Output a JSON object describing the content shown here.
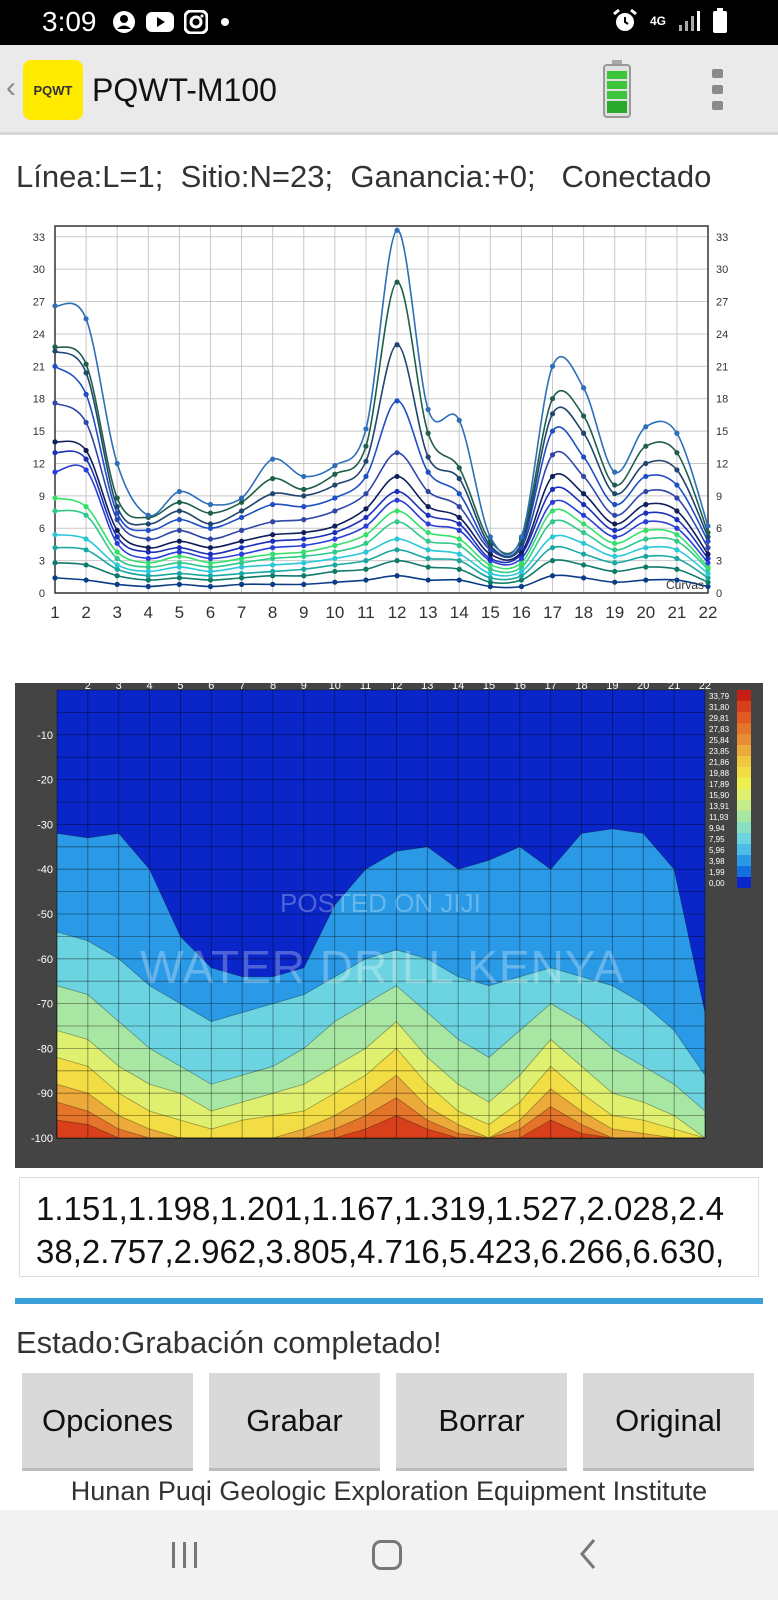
{
  "status_bar": {
    "time": "3:09",
    "left_icons": [
      "account-circle-icon",
      "youtube-icon",
      "instagram-icon",
      "dot-icon"
    ],
    "right_icons": [
      "alarm-icon",
      "signal-icon",
      "battery-icon"
    ],
    "network": "4G"
  },
  "app_bar": {
    "logo_text": "PQWT",
    "title": "PQWT-M100"
  },
  "info_line": "Línea:L=1;  Sitio:N=23;  Ganancia:+0;   Conectado",
  "chart_data": [
    {
      "type": "line",
      "title": "",
      "xlabel": "",
      "ylabel": "",
      "x": [
        1,
        2,
        3,
        4,
        5,
        6,
        7,
        8,
        9,
        10,
        11,
        12,
        13,
        14,
        15,
        16,
        17,
        18,
        19,
        20,
        21,
        22
      ],
      "xlim": [
        1,
        22
      ],
      "ylim": [
        0,
        34
      ],
      "y_ticks": [
        0,
        3,
        6,
        9,
        12,
        15,
        18,
        21,
        24,
        27,
        30,
        33
      ],
      "grid": true,
      "legend": "bottom-right",
      "legend_label": "Curvas",
      "series": [
        {
          "values": [
            26.6,
            25.4,
            12,
            7.2,
            9.4,
            8.2,
            8.8,
            12.4,
            10.8,
            11.8,
            15.2,
            33.6,
            17,
            16,
            5.2,
            5.2,
            21,
            19,
            11.2,
            15.4,
            14.8,
            6.2
          ],
          "color": "#2c6fb8"
        },
        {
          "values": [
            22.8,
            21.2,
            8.8,
            7,
            8.4,
            7.4,
            8.4,
            10.6,
            9.6,
            11,
            13.6,
            28.8,
            14.8,
            11.6,
            4.8,
            5,
            18,
            16.4,
            10,
            13.6,
            13,
            5.6
          ],
          "color": "#1f5e4a"
        },
        {
          "values": [
            22.4,
            20.4,
            8,
            6.4,
            7.6,
            6.4,
            7.6,
            9.2,
            9,
            10,
            12.2,
            23,
            12.6,
            10.6,
            4.4,
            4.6,
            16.6,
            14.8,
            9.2,
            12,
            11.4,
            5.2
          ],
          "color": "#20456e"
        },
        {
          "values": [
            21,
            18.4,
            7.4,
            5.8,
            6.8,
            6,
            7,
            8.2,
            8,
            8.8,
            10.8,
            17.8,
            11.2,
            9.2,
            4.2,
            4.4,
            15,
            12.6,
            8.2,
            10.8,
            10,
            4.8
          ],
          "color": "#1e4fc4"
        },
        {
          "values": [
            17.6,
            15.8,
            6.8,
            5,
            5.8,
            5,
            5.8,
            6.6,
            6.8,
            7.6,
            9.2,
            13,
            9.4,
            8,
            4,
            4.2,
            12.8,
            10.8,
            7.2,
            9.4,
            8.8,
            4.2
          ],
          "color": "#2f47a8"
        },
        {
          "values": [
            14,
            13.2,
            5.8,
            4.2,
            4.8,
            4.2,
            4.8,
            5.4,
            5.6,
            6.2,
            7.8,
            10.8,
            8,
            7,
            3.6,
            3.8,
            10.8,
            9.2,
            6.4,
            8.2,
            7.6,
            3.6
          ],
          "color": "#0e1f5a"
        },
        {
          "values": [
            13,
            12.4,
            5.2,
            3.8,
            4.2,
            3.6,
            4.2,
            4.8,
            5,
            5.6,
            7,
            9.4,
            7.2,
            6.4,
            3.2,
            3.6,
            9.6,
            8.2,
            5.8,
            7.4,
            6.8,
            3.2
          ],
          "color": "#1b2fb8"
        },
        {
          "values": [
            11.2,
            11.4,
            4.6,
            3.2,
            3.8,
            3.2,
            3.6,
            4.2,
            4.4,
            5,
            6.2,
            8.6,
            6.4,
            5.8,
            3,
            3.2,
            8.4,
            7.2,
            5.2,
            6.6,
            6,
            2.8
          ],
          "color": "#2a3fd8"
        },
        {
          "values": [
            8.8,
            8,
            3.8,
            2.8,
            3.4,
            2.8,
            3.2,
            3.6,
            3.8,
            4.4,
            5.4,
            7.6,
            5.6,
            5,
            2.6,
            2.8,
            7.6,
            6.4,
            4.6,
            5.8,
            5.4,
            2.4
          ],
          "color": "#35e06a"
        },
        {
          "values": [
            7.6,
            7.2,
            3.2,
            2.4,
            2.8,
            2.4,
            2.8,
            3.2,
            3.4,
            3.8,
            4.6,
            6.6,
            4.8,
            4.4,
            2.2,
            2.4,
            6.6,
            5.6,
            4,
            5,
            4.8,
            2.2
          ],
          "color": "#2fc98a"
        },
        {
          "values": [
            5.4,
            5,
            2.6,
            2,
            2.4,
            2,
            2.4,
            2.6,
            2.8,
            3.2,
            3.8,
            5,
            4,
            3.6,
            1.8,
            2,
            5.2,
            4.6,
            3.4,
            4.2,
            4,
            1.8
          ],
          "color": "#29c7d8"
        },
        {
          "values": [
            4.2,
            4,
            2.2,
            1.6,
            1.8,
            1.6,
            1.8,
            2,
            2.2,
            2.6,
            3,
            4,
            3.2,
            3,
            1.4,
            1.6,
            4.2,
            3.6,
            2.8,
            3.4,
            3.2,
            1.4
          ],
          "color": "#1aa7a0"
        },
        {
          "values": [
            2.8,
            2.6,
            1.6,
            1.2,
            1.4,
            1.2,
            1.4,
            1.6,
            1.6,
            2,
            2.2,
            3,
            2.4,
            2.2,
            1,
            1.2,
            3,
            2.6,
            2,
            2.4,
            2.2,
            1
          ],
          "color": "#0f7a6a"
        },
        {
          "values": [
            1.4,
            1.2,
            0.8,
            0.6,
            0.8,
            0.6,
            0.8,
            0.8,
            0.8,
            1,
            1.2,
            1.6,
            1.2,
            1.2,
            0.6,
            0.6,
            1.6,
            1.4,
            1,
            1.2,
            1.2,
            0.6
          ],
          "color": "#0b3c86"
        }
      ]
    },
    {
      "type": "heatmap",
      "title": "",
      "x_ticks": [
        2,
        3,
        4,
        5,
        6,
        7,
        8,
        9,
        10,
        11,
        12,
        13,
        14,
        15,
        16,
        17,
        18,
        19,
        20,
        21,
        22
      ],
      "y_ticks": [
        -10,
        -20,
        -30,
        -40,
        -50,
        -60,
        -70,
        -80,
        -90,
        -100
      ],
      "ylim": [
        -100,
        0
      ],
      "legend": "right",
      "legend_values": [
        "33,79",
        "31,80",
        "29,81",
        "27,83",
        "25,84",
        "23,85",
        "21,86",
        "19,88",
        "17,89",
        "15,90",
        "13,91",
        "11,93",
        "9,94",
        "7,95",
        "5,96",
        "3,98",
        "1,99",
        "0,00"
      ],
      "legend_colors": [
        "#c81e14",
        "#d8401c",
        "#e05a22",
        "#e4742a",
        "#e88c34",
        "#ecaa3a",
        "#f0c83e",
        "#f2de44",
        "#eef04e",
        "#dff070",
        "#c6ec8a",
        "#a8e6a4",
        "#8adfc2",
        "#6cd4e0",
        "#4cbce8",
        "#2a9ae6",
        "#1470de",
        "#0a26c8"
      ]
    }
  ],
  "watermarks": {
    "line1": "POSTED ON JIJI",
    "line2": "WATER DRILL KENYA"
  },
  "data_box_text": "1.151,1.198,1.201,1.167,1.319,1.527,2.028,2.438,2.757,2.962,3.805,4.716,5.423,6.266,6.630,",
  "progress": 1.0,
  "state_text": "Estado:Grabación completado!",
  "buttons": {
    "opciones": "Opciones",
    "grabar": "Grabar",
    "borrar": "Borrar",
    "original": "Original"
  },
  "footer_text": "Hunan Puqi Geologic Exploration Equipment Institute",
  "nav_bar": {
    "icons": [
      "recent-apps-icon",
      "home-icon",
      "back-icon"
    ]
  }
}
